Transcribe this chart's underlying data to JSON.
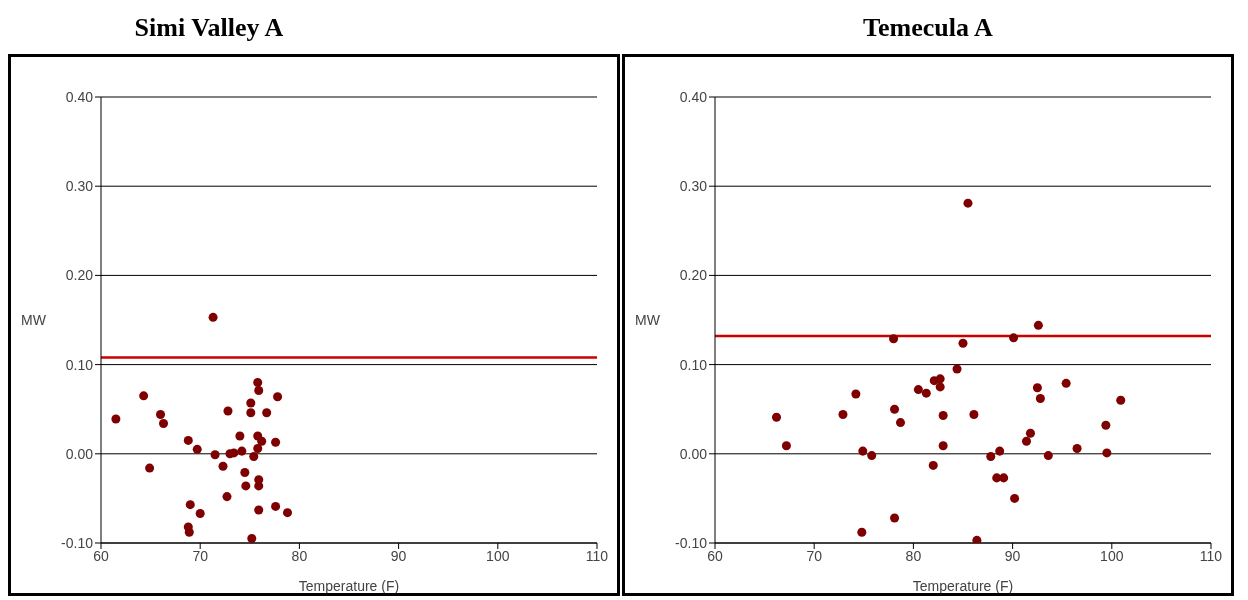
{
  "chart_data": [
    {
      "type": "scatter",
      "title": "Simi Valley A",
      "xlabel": "Temperature (F)",
      "ylabel": "MW",
      "marker": "circle",
      "grid": "y",
      "legend": false,
      "xlim": [
        60,
        110
      ],
      "xticks": [
        60,
        70,
        80,
        90,
        100,
        110
      ],
      "ylim": [
        -0.1,
        0.4
      ],
      "yticks": [
        {
          "value": -0.1,
          "label": "-0.10"
        },
        {
          "value": 0,
          "label": "0.00"
        },
        {
          "value": 0.1,
          "label": "0.10"
        },
        {
          "value": 0.2,
          "label": "0.20"
        },
        {
          "value": 0.3,
          "label": "0.30"
        },
        {
          "value": 0.4,
          "label": "0.40"
        }
      ],
      "ref_lines": [
        {
          "axis": "y",
          "value": 0.108,
          "color": "#cc0000"
        }
      ],
      "series": [
        {
          "color": "#7f0000",
          "x": [
            61.5,
            64.3,
            64.9,
            66.0,
            66.3,
            68.8,
            69.0,
            68.8,
            68.9,
            69.7,
            70.0,
            71.3,
            71.5,
            72.3,
            72.8,
            72.7,
            73.0,
            73.4,
            74.0,
            74.2,
            74.5,
            74.6,
            75.1,
            75.1,
            75.4,
            75.2,
            75.8,
            75.9,
            75.8,
            76.2,
            75.9,
            75.9,
            75.9,
            75.8,
            76.7,
            77.6,
            77.6,
            77.8,
            78.8
          ],
          "values": [
            0.039,
            0.065,
            -0.016,
            0.044,
            0.034,
            0.015,
            -0.057,
            -0.082,
            -0.088,
            0.005,
            -0.067,
            0.153,
            -0.001,
            -0.014,
            0.048,
            -0.048,
            0.0,
            0.001,
            0.02,
            0.003,
            -0.021,
            -0.036,
            0.057,
            0.046,
            -0.003,
            -0.095,
            0.08,
            0.071,
            0.02,
            0.014,
            -0.029,
            -0.036,
            -0.063,
            0.006,
            0.046,
            0.013,
            -0.059,
            0.064,
            -0.066
          ]
        }
      ]
    },
    {
      "type": "scatter",
      "title": "Temecula A",
      "xlabel": "Temperature (F)",
      "ylabel": "MW",
      "marker": "circle",
      "grid": "y",
      "legend": false,
      "xlim": [
        60,
        110
      ],
      "xticks": [
        60,
        70,
        80,
        90,
        100,
        110
      ],
      "ylim": [
        -0.1,
        0.4
      ],
      "yticks": [
        {
          "value": -0.1,
          "label": "-0.10"
        },
        {
          "value": 0,
          "label": "0.00"
        },
        {
          "value": 0.1,
          "label": "0.10"
        },
        {
          "value": 0.2,
          "label": "0.20"
        },
        {
          "value": 0.3,
          "label": "0.30"
        },
        {
          "value": 0.4,
          "label": "0.40"
        }
      ],
      "ref_lines": [
        {
          "axis": "y",
          "value": 0.132,
          "color": "#cc0000"
        }
      ],
      "series": [
        {
          "color": "#7f0000",
          "x": [
            66.2,
            67.2,
            72.9,
            74.2,
            74.9,
            75.8,
            74.8,
            78.0,
            78.1,
            78.7,
            78.1,
            80.5,
            81.3,
            82.0,
            82.1,
            82.7,
            82.7,
            83.0,
            83.0,
            84.4,
            85.0,
            85.5,
            86.1,
            86.4,
            87.8,
            88.4,
            89.1,
            88.7,
            90.2,
            90.1,
            91.4,
            91.8,
            92.6,
            92.5,
            92.8,
            93.6,
            95.4,
            96.5,
            99.4,
            99.5,
            100.9
          ],
          "values": [
            0.041,
            0.009,
            0.044,
            0.067,
            0.003,
            -0.002,
            -0.088,
            0.129,
            0.05,
            0.035,
            -0.072,
            0.072,
            0.068,
            -0.013,
            0.082,
            0.084,
            0.075,
            0.043,
            0.009,
            0.095,
            0.124,
            0.281,
            0.044,
            -0.097,
            -0.003,
            -0.027,
            -0.027,
            0.003,
            -0.05,
            0.13,
            0.014,
            0.023,
            0.144,
            0.074,
            0.062,
            -0.002,
            0.079,
            0.006,
            0.032,
            0.001,
            0.06
          ]
        }
      ]
    }
  ]
}
